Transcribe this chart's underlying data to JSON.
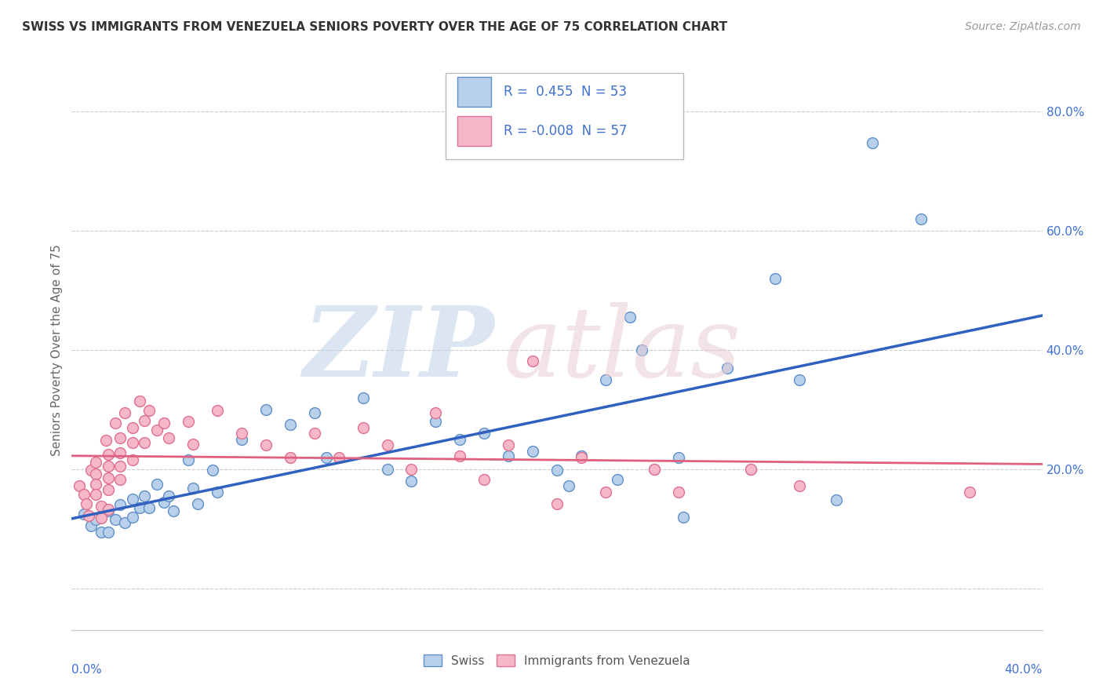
{
  "title": "SWISS VS IMMIGRANTS FROM VENEZUELA SENIORS POVERTY OVER THE AGE OF 75 CORRELATION CHART",
  "source": "Source: ZipAtlas.com",
  "ylabel": "Seniors Poverty Over the Age of 75",
  "y_tick_values": [
    0.0,
    0.2,
    0.4,
    0.6,
    0.8
  ],
  "y_tick_labels": [
    "",
    "20.0%",
    "40.0%",
    "60.0%",
    "80.0%"
  ],
  "x_range": [
    0.0,
    0.4
  ],
  "y_range": [
    -0.07,
    0.87
  ],
  "R_swiss": "0.455",
  "N_swiss": "53",
  "R_venezuela": "-0.008",
  "N_venezuela": "57",
  "swiss_fill": "#b8d0ea",
  "swiss_edge": "#6090c8",
  "venezuela_fill": "#f5b8c8",
  "venezuela_edge": "#e07090",
  "swiss_line_color": "#3060c0",
  "venezuela_line_color": "#e06080",
  "legend_color": "#4070d0",
  "grid_color": "#cccccc",
  "title_color": "#333333",
  "source_color": "#999999",
  "ylabel_color": "#666666",
  "bottom_label_color": "#555555",
  "swiss_dots": [
    [
      0.005,
      0.125
    ],
    [
      0.008,
      0.105
    ],
    [
      0.01,
      0.115
    ],
    [
      0.012,
      0.095
    ],
    [
      0.015,
      0.13
    ],
    [
      0.015,
      0.095
    ],
    [
      0.018,
      0.115
    ],
    [
      0.02,
      0.14
    ],
    [
      0.022,
      0.11
    ],
    [
      0.025,
      0.15
    ],
    [
      0.025,
      0.12
    ],
    [
      0.028,
      0.135
    ],
    [
      0.03,
      0.155
    ],
    [
      0.032,
      0.135
    ],
    [
      0.035,
      0.175
    ],
    [
      0.038,
      0.145
    ],
    [
      0.04,
      0.155
    ],
    [
      0.042,
      0.13
    ],
    [
      0.048,
      0.215
    ],
    [
      0.05,
      0.168
    ],
    [
      0.052,
      0.142
    ],
    [
      0.058,
      0.198
    ],
    [
      0.06,
      0.162
    ],
    [
      0.07,
      0.25
    ],
    [
      0.08,
      0.3
    ],
    [
      0.09,
      0.275
    ],
    [
      0.1,
      0.295
    ],
    [
      0.105,
      0.22
    ],
    [
      0.12,
      0.32
    ],
    [
      0.13,
      0.2
    ],
    [
      0.14,
      0.18
    ],
    [
      0.15,
      0.28
    ],
    [
      0.16,
      0.25
    ],
    [
      0.17,
      0.26
    ],
    [
      0.18,
      0.222
    ],
    [
      0.19,
      0.23
    ],
    [
      0.2,
      0.198
    ],
    [
      0.205,
      0.172
    ],
    [
      0.21,
      0.222
    ],
    [
      0.22,
      0.35
    ],
    [
      0.225,
      0.182
    ],
    [
      0.23,
      0.455
    ],
    [
      0.235,
      0.4
    ],
    [
      0.24,
      0.2
    ],
    [
      0.25,
      0.22
    ],
    [
      0.252,
      0.12
    ],
    [
      0.27,
      0.37
    ],
    [
      0.28,
      0.2
    ],
    [
      0.29,
      0.52
    ],
    [
      0.3,
      0.35
    ],
    [
      0.315,
      0.148
    ],
    [
      0.33,
      0.748
    ],
    [
      0.35,
      0.62
    ]
  ],
  "venezuela_dots": [
    [
      0.003,
      0.172
    ],
    [
      0.005,
      0.158
    ],
    [
      0.006,
      0.142
    ],
    [
      0.007,
      0.122
    ],
    [
      0.008,
      0.198
    ],
    [
      0.01,
      0.212
    ],
    [
      0.01,
      0.192
    ],
    [
      0.01,
      0.175
    ],
    [
      0.01,
      0.158
    ],
    [
      0.012,
      0.138
    ],
    [
      0.012,
      0.118
    ],
    [
      0.014,
      0.248
    ],
    [
      0.015,
      0.225
    ],
    [
      0.015,
      0.205
    ],
    [
      0.015,
      0.185
    ],
    [
      0.015,
      0.165
    ],
    [
      0.015,
      0.132
    ],
    [
      0.018,
      0.278
    ],
    [
      0.02,
      0.252
    ],
    [
      0.02,
      0.228
    ],
    [
      0.02,
      0.205
    ],
    [
      0.02,
      0.182
    ],
    [
      0.022,
      0.295
    ],
    [
      0.025,
      0.27
    ],
    [
      0.025,
      0.245
    ],
    [
      0.025,
      0.215
    ],
    [
      0.028,
      0.315
    ],
    [
      0.03,
      0.282
    ],
    [
      0.03,
      0.245
    ],
    [
      0.032,
      0.298
    ],
    [
      0.035,
      0.265
    ],
    [
      0.038,
      0.278
    ],
    [
      0.04,
      0.252
    ],
    [
      0.048,
      0.28
    ],
    [
      0.05,
      0.242
    ],
    [
      0.06,
      0.298
    ],
    [
      0.07,
      0.26
    ],
    [
      0.08,
      0.24
    ],
    [
      0.09,
      0.22
    ],
    [
      0.1,
      0.26
    ],
    [
      0.11,
      0.22
    ],
    [
      0.12,
      0.27
    ],
    [
      0.13,
      0.24
    ],
    [
      0.14,
      0.2
    ],
    [
      0.15,
      0.295
    ],
    [
      0.16,
      0.222
    ],
    [
      0.17,
      0.182
    ],
    [
      0.18,
      0.24
    ],
    [
      0.19,
      0.382
    ],
    [
      0.2,
      0.142
    ],
    [
      0.21,
      0.22
    ],
    [
      0.22,
      0.162
    ],
    [
      0.24,
      0.2
    ],
    [
      0.25,
      0.162
    ],
    [
      0.28,
      0.2
    ],
    [
      0.3,
      0.172
    ],
    [
      0.37,
      0.162
    ]
  ]
}
